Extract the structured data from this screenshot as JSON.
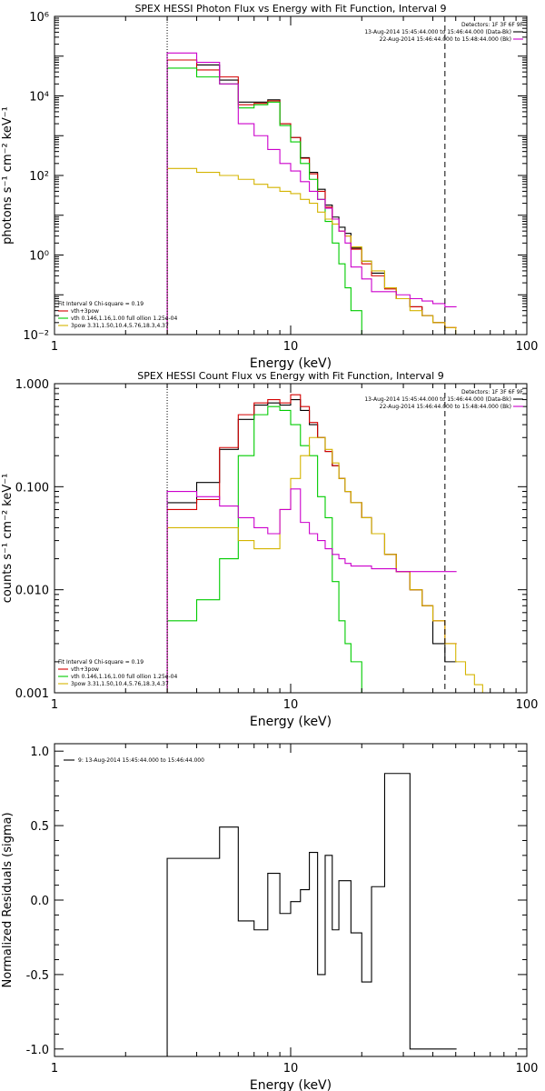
{
  "colors": {
    "black": "#000000",
    "red": "#d40000",
    "green": "#00cc00",
    "yellow": "#d4b400",
    "magenta": "#cc00cc"
  },
  "chart_data": [
    {
      "type": "line",
      "title": "SPEX HESSI Photon Flux vs Energy with Fit Function, Interval 9",
      "xlabel": "Energy (keV)",
      "ylabel": "photons s⁻¹ cm⁻² keV⁻¹",
      "xscale": "log",
      "yscale": "log",
      "xlim": [
        1,
        100
      ],
      "ylim": [
        0.01,
        1000000
      ],
      "x_ticks": [
        {
          "v": 1,
          "t": "1"
        },
        {
          "v": 10,
          "t": "10"
        },
        {
          "v": 100,
          "t": "100"
        }
      ],
      "y_ticks": [
        {
          "v": 0.01,
          "t": "10⁻²"
        },
        {
          "v": 1,
          "t": "10⁰"
        },
        {
          "v": 100,
          "t": "10²"
        },
        {
          "v": 10000,
          "t": "10⁴"
        },
        {
          "v": 1000000,
          "t": "10⁶"
        }
      ],
      "vlines": [
        {
          "x": 3.0,
          "style": "dotted"
        },
        {
          "x": 45,
          "style": "dashed"
        }
      ],
      "legend_topright": [
        "Detectors: 1F 3F 6F 9F",
        "13-Aug-2014 15:45:44.000 to 15:46:44.000 (Data-Bk)",
        "22-Aug-2014 15:46:44.000 to 15:48:44.000 (Bk)"
      ],
      "legend_bottomleft": [
        "Fit Interval 9   Chi-square = 0.19",
        "vth+3pow",
        "vth 0.146,1.16,1.00  full ollion 1.25e-04",
        "3pow 3.31,1.50,10.4,5.76,18.3,4.37"
      ],
      "series": [
        {
          "name": "13-Aug-2014 15:45:44.000 to 15:46:44.000 (Data-Bk)",
          "color": "black",
          "x": [
            3,
            4,
            5,
            6,
            7,
            8,
            9,
            10,
            11,
            12,
            13,
            14,
            15,
            16,
            17,
            18,
            20,
            22,
            25,
            28,
            32,
            36,
            40,
            45
          ],
          "y": [
            80000,
            60000,
            25000,
            7000,
            7000,
            8000,
            2000,
            900,
            280,
            120,
            45,
            18,
            9,
            5,
            3.5,
            1.5,
            0.7,
            0.35,
            0.15,
            0.08,
            0.05,
            0.03,
            0.02,
            0.01
          ]
        },
        {
          "name": "vth+3pow",
          "color": "red",
          "x": [
            3,
            4,
            5,
            6,
            7,
            8,
            9,
            10,
            11,
            12,
            13,
            14,
            15,
            16,
            17,
            18,
            20,
            22,
            25,
            28,
            32,
            36,
            40,
            45
          ],
          "y": [
            80000,
            45000,
            30000,
            6000,
            6500,
            7500,
            2000,
            900,
            270,
            110,
            40,
            16,
            8,
            4,
            3,
            1.4,
            0.6,
            0.3,
            0.14,
            0.08,
            0.05,
            0.03,
            0.02,
            0.015
          ]
        },
        {
          "name": "vth 0.146,1.16,1.00  full ollion 1.25e-04",
          "color": "green",
          "x": [
            3,
            4,
            5,
            6,
            7,
            8,
            9,
            10,
            11,
            12,
            13,
            14,
            15,
            16,
            17,
            18,
            20
          ],
          "y": [
            50000,
            30000,
            20000,
            5000,
            6000,
            7000,
            1800,
            700,
            200,
            80,
            25,
            7,
            2,
            0.6,
            0.15,
            0.04,
            0.01
          ]
        },
        {
          "name": "3pow 3.31,1.50,10.4,5.76,18.3,4.37",
          "color": "yellow",
          "x": [
            3,
            4,
            5,
            6,
            7,
            8,
            9,
            10,
            11,
            12,
            13,
            14,
            15,
            16,
            17,
            18,
            20,
            22,
            25,
            28,
            32,
            36,
            40,
            45,
            50
          ],
          "y": [
            150,
            120,
            100,
            80,
            60,
            50,
            40,
            35,
            25,
            20,
            12,
            8,
            6,
            4,
            3,
            1.6,
            0.7,
            0.4,
            0.15,
            0.08,
            0.04,
            0.03,
            0.02,
            0.015,
            0.01
          ]
        },
        {
          "name": "22-Aug-2014 15:46:44.000 to 15:48:44.000 (Bk)",
          "color": "magenta",
          "x": [
            3,
            4,
            5,
            6,
            7,
            8,
            9,
            10,
            11,
            12,
            13,
            14,
            15,
            16,
            17,
            18,
            20,
            22,
            25,
            28,
            32,
            36,
            40,
            45
          ],
          "y": [
            120000,
            70000,
            20000,
            2000,
            1000,
            450,
            200,
            130,
            70,
            40,
            25,
            15,
            8,
            4,
            2,
            0.5,
            0.25,
            0.12,
            0.12,
            0.1,
            0.08,
            0.07,
            0.06,
            0.05
          ]
        }
      ]
    },
    {
      "type": "line",
      "title": "SPEX HESSI Count Flux vs Energy with Fit Function, Interval 9",
      "xlabel": "Energy (keV)",
      "ylabel": "counts s⁻¹ cm⁻² keV⁻¹",
      "xscale": "log",
      "yscale": "log",
      "xlim": [
        1,
        100
      ],
      "ylim": [
        0.001,
        1.0
      ],
      "x_ticks": [
        {
          "v": 1,
          "t": "1"
        },
        {
          "v": 10,
          "t": "10"
        },
        {
          "v": 100,
          "t": "100"
        }
      ],
      "y_ticks": [
        {
          "v": 0.001,
          "t": "0.001"
        },
        {
          "v": 0.01,
          "t": "0.010"
        },
        {
          "v": 0.1,
          "t": "0.100"
        },
        {
          "v": 1,
          "t": "1.000"
        }
      ],
      "vlines": [
        {
          "x": 3.0,
          "style": "dotted"
        },
        {
          "x": 45,
          "style": "dashed"
        }
      ],
      "legend_topright": [
        "Detectors: 1F 3F 6F 9F",
        "13-Aug-2014 15:45:44.000 to 15:46:44.000 (Data-Bk)",
        "22-Aug-2014 15:46:44.000 to 15:48:44.000 (Bk)"
      ],
      "legend_bottomleft": [
        "Fit Interval 9   Chi-square = 0.19",
        "vth+3pow",
        "vth 0.146,1.16,1.00  full ollion 1.25e-04",
        "3pow 3.31,1.50,10.4,5.76,18.3,4.37"
      ],
      "series": [
        {
          "name": "13-Aug-2014 15:45:44.000 to 15:46:44.000 (Data-Bk)",
          "color": "black",
          "x": [
            3,
            4,
            5,
            6,
            7,
            8,
            9,
            10,
            11,
            12,
            13,
            14,
            15,
            16,
            17,
            18,
            20,
            22,
            25,
            28,
            32,
            36,
            40,
            45
          ],
          "y": [
            0.07,
            0.11,
            0.23,
            0.45,
            0.62,
            0.65,
            0.62,
            0.7,
            0.55,
            0.4,
            0.3,
            0.22,
            0.16,
            0.12,
            0.09,
            0.07,
            0.05,
            0.035,
            0.022,
            0.015,
            0.01,
            0.007,
            0.003,
            0.002
          ]
        },
        {
          "name": "vth+3pow",
          "color": "red",
          "x": [
            3,
            4,
            5,
            6,
            7,
            8,
            9,
            10,
            11,
            12,
            13,
            14,
            15,
            16,
            17,
            18,
            20,
            22,
            25,
            28,
            32,
            36,
            40,
            45
          ],
          "y": [
            0.06,
            0.075,
            0.24,
            0.5,
            0.65,
            0.7,
            0.65,
            0.78,
            0.6,
            0.42,
            0.3,
            0.22,
            0.16,
            0.12,
            0.09,
            0.07,
            0.05,
            0.035,
            0.022,
            0.015,
            0.01,
            0.007,
            0.005,
            0.003
          ]
        },
        {
          "name": "vth 0.146,1.16,1.00  full ollion 1.25e-04",
          "color": "green",
          "x": [
            3,
            4,
            5,
            6,
            7,
            8,
            9,
            10,
            11,
            12,
            13,
            14,
            15,
            16,
            17,
            18,
            20,
            22
          ],
          "y": [
            0.005,
            0.008,
            0.02,
            0.2,
            0.5,
            0.6,
            0.55,
            0.4,
            0.25,
            0.2,
            0.08,
            0.05,
            0.012,
            0.005,
            0.003,
            0.002,
            0.001,
            0.0009
          ]
        },
        {
          "name": "3pow 3.31,1.50,10.4,5.76,18.3,4.37",
          "color": "yellow",
          "x": [
            3,
            4,
            5,
            6,
            7,
            8,
            9,
            10,
            11,
            12,
            13,
            14,
            15,
            16,
            17,
            18,
            20,
            22,
            25,
            28,
            32,
            36,
            40,
            45,
            50,
            55,
            60,
            65
          ],
          "y": [
            0.04,
            0.04,
            0.04,
            0.03,
            0.025,
            0.025,
            0.06,
            0.12,
            0.2,
            0.3,
            0.3,
            0.23,
            0.17,
            0.12,
            0.09,
            0.07,
            0.05,
            0.035,
            0.022,
            0.015,
            0.01,
            0.007,
            0.005,
            0.003,
            0.002,
            0.0015,
            0.0012,
            0.001
          ]
        },
        {
          "name": "22-Aug-2014 15:46:44.000 to 15:48:44.000 (Bk)",
          "color": "magenta",
          "x": [
            3,
            4,
            5,
            6,
            7,
            8,
            9,
            10,
            11,
            12,
            13,
            14,
            15,
            16,
            17,
            18,
            20,
            22,
            25,
            28,
            32,
            36,
            40,
            45
          ],
          "y": [
            0.09,
            0.08,
            0.065,
            0.05,
            0.04,
            0.035,
            0.06,
            0.095,
            0.045,
            0.035,
            0.03,
            0.025,
            0.022,
            0.02,
            0.018,
            0.017,
            0.017,
            0.016,
            0.016,
            0.015,
            0.015,
            0.015,
            0.015,
            0.015
          ]
        }
      ]
    },
    {
      "type": "line",
      "title": "",
      "xlabel": "Energy (keV)",
      "ylabel": "Normalized Residuals (sigma)",
      "xscale": "log",
      "yscale": "linear",
      "xlim": [
        1,
        100
      ],
      "ylim": [
        -1.05,
        1.05
      ],
      "x_ticks": [
        {
          "v": 1,
          "t": "1"
        },
        {
          "v": 10,
          "t": "10"
        },
        {
          "v": 100,
          "t": "100"
        }
      ],
      "y_ticks": [
        {
          "v": -1,
          "t": "-1.0"
        },
        {
          "v": -0.5,
          "t": "-0.5"
        },
        {
          "v": 0,
          "t": "0.0"
        },
        {
          "v": 0.5,
          "t": "0.5"
        },
        {
          "v": 1,
          "t": "1.0"
        }
      ],
      "legend_topleft": [
        "9: 13-Aug-2014 15:45:44.000 to 15:46:44.000"
      ],
      "series": [
        {
          "name": "9: 13-Aug-2014 15:45:44.000 to 15:46:44.000",
          "color": "black",
          "x": [
            3,
            4,
            5,
            6,
            7,
            8,
            9,
            10,
            11,
            12,
            13,
            14,
            15,
            16,
            17,
            18,
            20,
            22,
            25,
            28,
            32,
            36,
            40,
            45
          ],
          "y": [
            0.28,
            0.28,
            0.49,
            -0.14,
            -0.2,
            0.18,
            -0.09,
            -0.01,
            0.07,
            0.32,
            -0.5,
            0.3,
            -0.2,
            0.13,
            0.13,
            -0.22,
            -0.55,
            0.09,
            0.85,
            0.85,
            -1.0,
            -1.0,
            -1.0,
            -1.0
          ]
        }
      ]
    }
  ]
}
